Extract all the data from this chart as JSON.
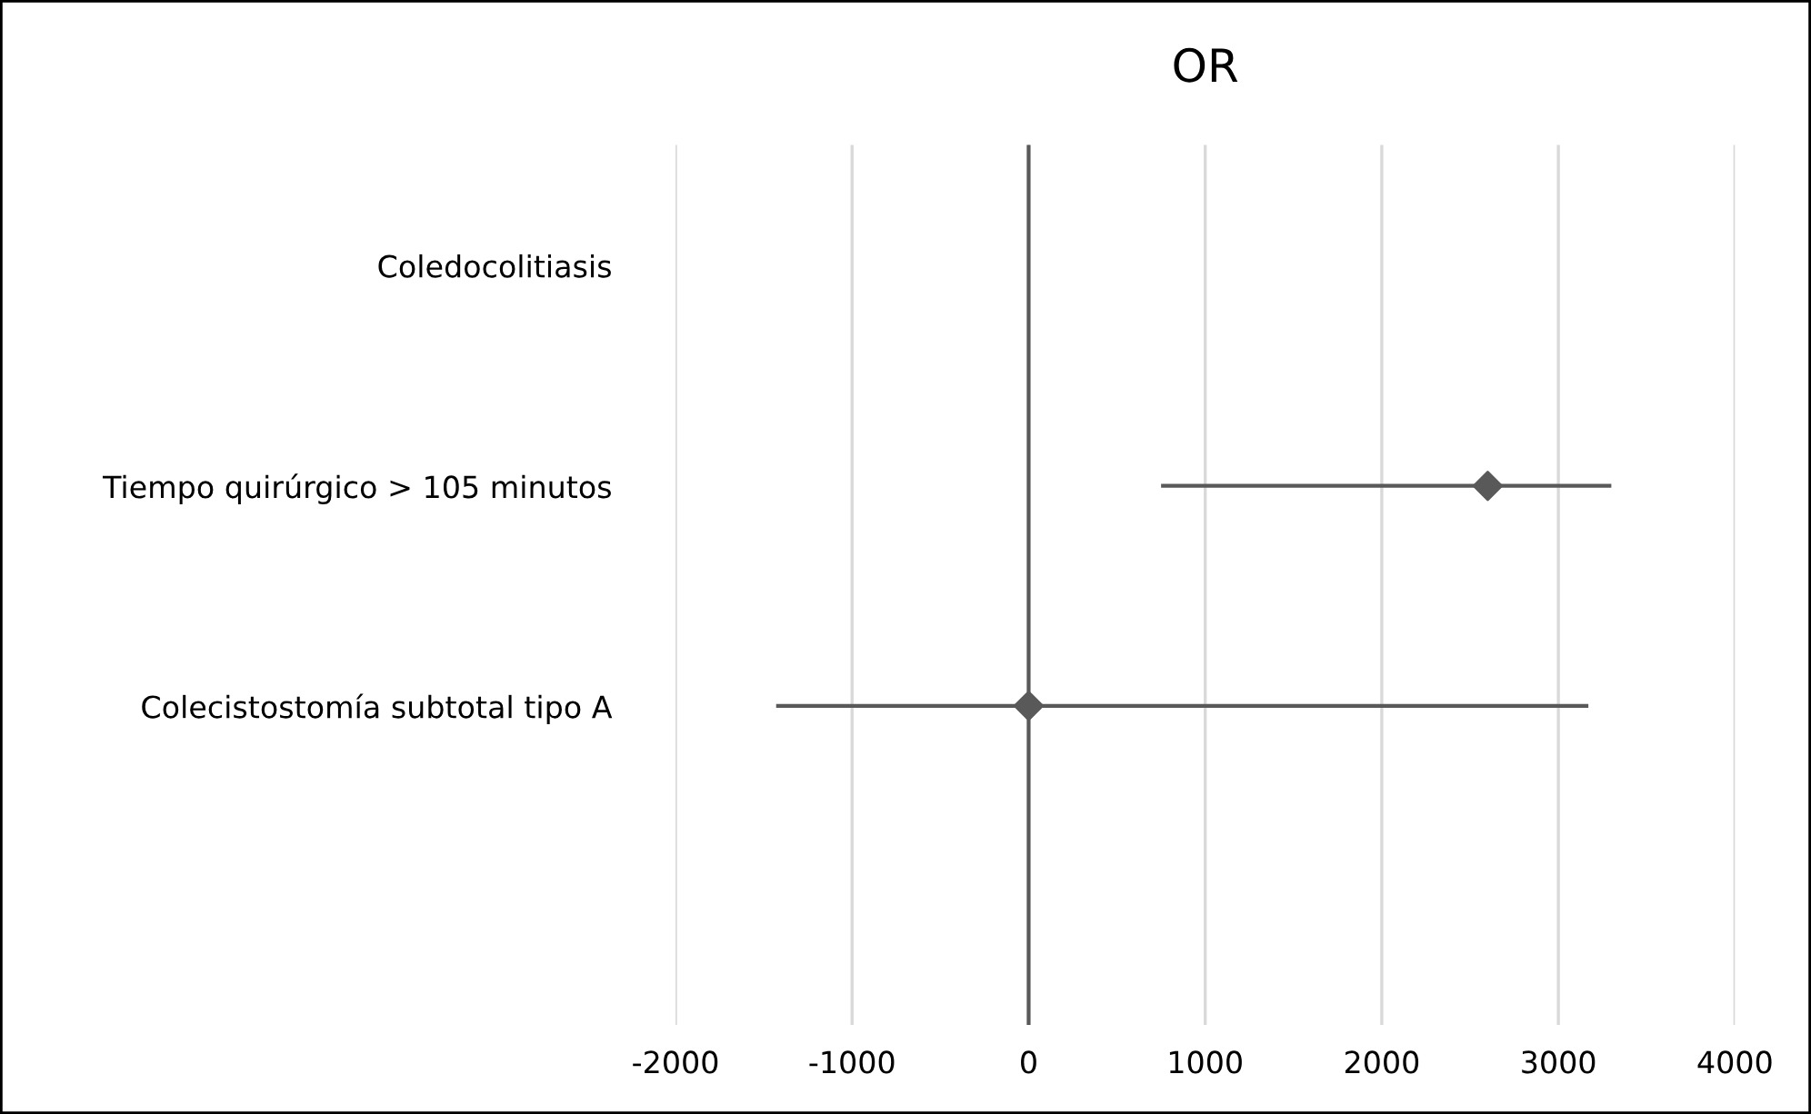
{
  "chart_data": {
    "type": "scatter",
    "title": "OR",
    "orientation": "horizontal",
    "categories": [
      "Coledocolitiasis",
      "Tiempo quirúrgico > 105 minutos",
      "Colecistostomía subtotal tipo A"
    ],
    "series": [
      {
        "color": "#595959",
        "values": [
          null,
          2600,
          0
        ],
        "errors": [
          null,
          [
            750,
            3300
          ],
          [
            -1430,
            3170
          ]
        ]
      }
    ],
    "xlim": [
      -2000,
      4000
    ],
    "xticks": [
      -2000,
      -1000,
      0,
      1000,
      2000,
      3000,
      4000
    ],
    "grid": "x",
    "marker": "diamond",
    "ref_lines": [
      {
        "axis": "x",
        "value": 0,
        "color": "#595959"
      }
    ]
  }
}
